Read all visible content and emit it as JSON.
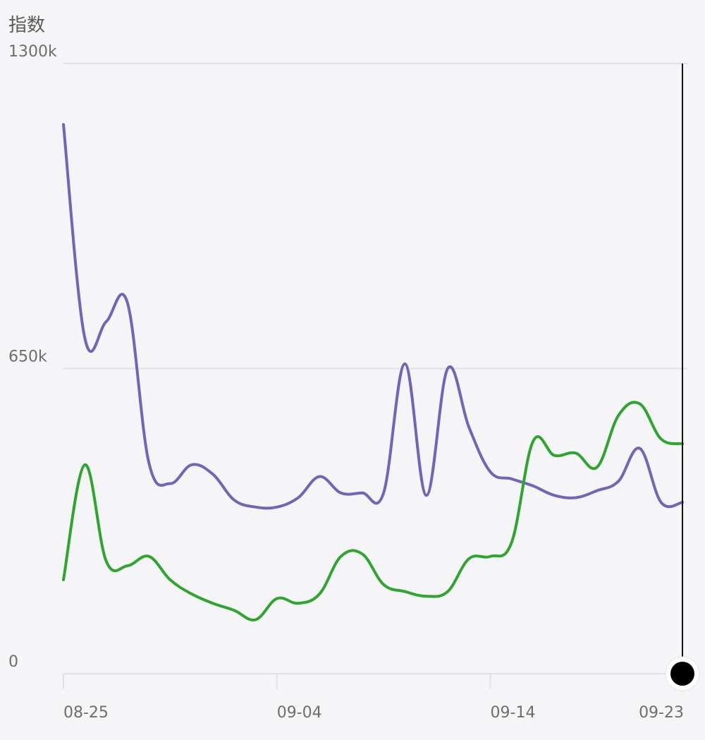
{
  "chart_data": {
    "type": "line",
    "ylabel": "指数",
    "ylim": [
      0,
      1300000
    ],
    "ytick_values": [
      0,
      650000,
      1300000
    ],
    "ytick_labels": [
      "0",
      "650k",
      "1300k"
    ],
    "x_start": "08-25",
    "x_ticks": [
      {
        "label": "08-25",
        "index": 0
      },
      {
        "label": "09-04",
        "index": 10
      },
      {
        "label": "09-14",
        "index": 20
      },
      {
        "label": "09-23",
        "index": 29
      }
    ],
    "grid": true,
    "series": [
      {
        "color": "#7464b8",
        "values": [
          1170000,
          715000,
          750000,
          790000,
          450000,
          405000,
          445000,
          425000,
          370000,
          355000,
          355000,
          375000,
          420000,
          385000,
          385000,
          385000,
          660000,
          380000,
          650000,
          525000,
          430000,
          415000,
          400000,
          380000,
          375000,
          390000,
          410000,
          480000,
          365000,
          365000
        ]
      },
      {
        "color": "#2ea52e",
        "values": [
          200000,
          445000,
          240000,
          230000,
          250000,
          200000,
          170000,
          150000,
          135000,
          115000,
          160000,
          150000,
          170000,
          250000,
          255000,
          190000,
          175000,
          165000,
          175000,
          245000,
          250000,
          280000,
          495000,
          465000,
          470000,
          440000,
          550000,
          575000,
          500000,
          490000
        ]
      }
    ]
  }
}
